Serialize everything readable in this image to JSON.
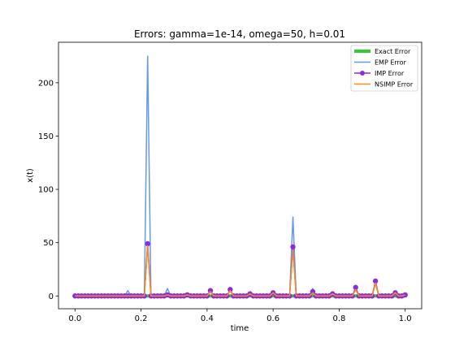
{
  "chart_data": {
    "type": "line",
    "title": "Errors: gamma=1e-14, omega=50, h=0.01",
    "xlabel": "time",
    "ylabel": "x(t)",
    "xlim": [
      -0.05,
      1.05
    ],
    "ylim": [
      -12,
      238
    ],
    "xticks": [
      0.0,
      0.2,
      0.4,
      0.6,
      0.8,
      1.0
    ],
    "xtick_labels": [
      "0.0",
      "0.2",
      "0.4",
      "0.6",
      "0.8",
      "1.0"
    ],
    "yticks": [
      0,
      50,
      100,
      150,
      200
    ],
    "ytick_labels": [
      "0",
      "50",
      "100",
      "150",
      "200"
    ],
    "grid": false,
    "legend_position": "top-right",
    "x": [
      0.0,
      0.01,
      0.02,
      0.03,
      0.04,
      0.05,
      0.06,
      0.07,
      0.08,
      0.09,
      0.1,
      0.11,
      0.12,
      0.13,
      0.14,
      0.15,
      0.16,
      0.17,
      0.18,
      0.19,
      0.2,
      0.21,
      0.22,
      0.23,
      0.24,
      0.25,
      0.26,
      0.27,
      0.28,
      0.29,
      0.3,
      0.31,
      0.32,
      0.33,
      0.34,
      0.35,
      0.36,
      0.37,
      0.38,
      0.39,
      0.4,
      0.41,
      0.42,
      0.43,
      0.44,
      0.45,
      0.46,
      0.47,
      0.48,
      0.49,
      0.5,
      0.51,
      0.52,
      0.53,
      0.54,
      0.55,
      0.56,
      0.57,
      0.58,
      0.59,
      0.6,
      0.61,
      0.62,
      0.63,
      0.64,
      0.65,
      0.66,
      0.67,
      0.68,
      0.69,
      0.7,
      0.71,
      0.72,
      0.73,
      0.74,
      0.75,
      0.76,
      0.77,
      0.78,
      0.79,
      0.8,
      0.81,
      0.82,
      0.83,
      0.84,
      0.85,
      0.86,
      0.87,
      0.88,
      0.89,
      0.9,
      0.91,
      0.92,
      0.93,
      0.94,
      0.95,
      0.96,
      0.97,
      0.98,
      0.99,
      1.0
    ],
    "series": [
      {
        "name": "Exact Error",
        "color": "#33cc33",
        "values": [
          0,
          0,
          0,
          0,
          0,
          0,
          0,
          0,
          0,
          0,
          0,
          0,
          0,
          0,
          0,
          0,
          0,
          0,
          0,
          0,
          0,
          0,
          0,
          0,
          0,
          0,
          0,
          0,
          0,
          0,
          0,
          0,
          0,
          0,
          0,
          0,
          0,
          0,
          0,
          0,
          0,
          0,
          0,
          0,
          0,
          0,
          0,
          0,
          0,
          0,
          0,
          0,
          0,
          0,
          0,
          0,
          0,
          0,
          0,
          0,
          0,
          0,
          0,
          0,
          0,
          0,
          0,
          0,
          0,
          0,
          0,
          0,
          0,
          0,
          0,
          0,
          0,
          0,
          0,
          0,
          0,
          0,
          0,
          0,
          0,
          0,
          0,
          0,
          0,
          0,
          0,
          0,
          0,
          0,
          0,
          0,
          0,
          0,
          0,
          0,
          0
        ]
      },
      {
        "name": "EMP Error",
        "color": "#6699ee",
        "values": [
          0,
          0,
          0,
          0,
          0,
          0,
          0,
          0,
          0,
          0,
          1,
          0,
          0,
          0,
          0,
          0,
          5,
          0,
          0,
          0,
          0,
          0,
          225,
          0,
          0,
          0,
          0,
          0,
          7,
          0,
          0,
          0,
          0,
          0,
          3,
          0,
          0,
          0,
          0,
          0,
          0,
          4,
          0,
          0,
          0,
          0,
          0,
          5,
          0,
          0,
          0,
          0,
          0,
          2,
          0,
          0,
          0,
          0,
          0,
          0,
          3,
          0,
          0,
          0,
          0,
          0,
          74,
          0,
          0,
          0,
          0,
          0,
          7,
          0,
          0,
          0,
          0,
          0,
          3,
          0,
          0,
          0,
          0,
          0,
          0,
          7,
          0,
          0,
          0,
          0,
          0,
          12,
          0,
          0,
          0,
          0,
          0,
          3,
          0,
          0,
          0
        ]
      },
      {
        "name": "IMP Error",
        "color": "#8a2be2",
        "values": [
          0,
          0,
          0,
          0,
          0,
          0,
          0,
          0,
          0,
          0,
          0,
          0,
          0,
          0,
          0,
          0,
          0,
          0,
          0,
          0,
          0,
          0,
          49,
          0,
          0,
          0,
          0,
          0,
          1,
          0,
          0,
          0,
          0,
          0,
          1,
          0,
          0,
          0,
          0,
          0,
          0,
          5,
          0,
          0,
          0,
          0,
          0,
          6,
          0,
          0,
          0,
          0,
          0,
          2,
          0,
          0,
          0,
          0,
          0,
          0,
          3,
          0,
          0,
          0,
          0,
          0,
          46,
          0,
          0,
          0,
          0,
          0,
          4,
          0,
          0,
          0,
          0,
          0,
          2,
          0,
          0,
          0,
          0,
          0,
          0,
          8,
          0,
          0,
          0,
          0,
          0,
          14,
          0,
          0,
          0,
          0,
          0,
          3,
          0,
          0,
          1
        ]
      },
      {
        "name": "NSIMP Error",
        "color": "#ff8c1a",
        "values": [
          0,
          0,
          0,
          0,
          0,
          0,
          0,
          0,
          0,
          0,
          0,
          0,
          0,
          0,
          0,
          0,
          0,
          0,
          0,
          0,
          0,
          0,
          47,
          0,
          0,
          0,
          0,
          0,
          1,
          0,
          0,
          0,
          0,
          0,
          1,
          0,
          0,
          0,
          0,
          0,
          0,
          4,
          0,
          0,
          0,
          0,
          0,
          5,
          0,
          0,
          0,
          0,
          0,
          2,
          0,
          0,
          0,
          0,
          0,
          0,
          3,
          0,
          0,
          0,
          0,
          0,
          43,
          0,
          0,
          0,
          0,
          0,
          3,
          0,
          0,
          0,
          0,
          0,
          2,
          0,
          0,
          0,
          0,
          0,
          0,
          6,
          0,
          0,
          0,
          0,
          0,
          12,
          0,
          0,
          0,
          0,
          0,
          3,
          0,
          0,
          1
        ]
      }
    ]
  }
}
